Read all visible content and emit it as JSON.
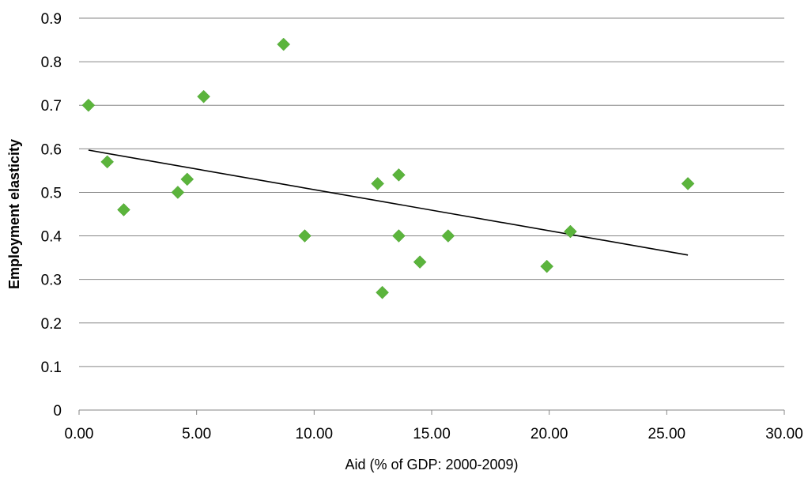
{
  "chart_data": {
    "type": "scatter",
    "title": "",
    "xlabel": "Aid (% of GDP: 2000-2009)",
    "ylabel": "Employment elasticity",
    "xlim": [
      0,
      30
    ],
    "ylim": [
      0,
      0.9
    ],
    "x_ticks": [
      0,
      5,
      10,
      15,
      20,
      25,
      30
    ],
    "x_tick_labels": [
      "0.00",
      "5.00",
      "10.00",
      "15.00",
      "20.00",
      "25.00",
      "30.00"
    ],
    "y_ticks": [
      0,
      0.1,
      0.2,
      0.3,
      0.4,
      0.5,
      0.6,
      0.7,
      0.8,
      0.9
    ],
    "y_tick_labels": [
      "0",
      "0.1",
      "0.2",
      "0.3",
      "0.4",
      "0.5",
      "0.6",
      "0.7",
      "0.8",
      "0.9"
    ],
    "grid": "horizontal",
    "marker": "diamond",
    "marker_color": "#5BB43C",
    "trendline_color": "#000000",
    "points": [
      {
        "x": 0.4,
        "y": 0.7
      },
      {
        "x": 1.2,
        "y": 0.57
      },
      {
        "x": 1.9,
        "y": 0.46
      },
      {
        "x": 4.2,
        "y": 0.5
      },
      {
        "x": 4.6,
        "y": 0.53
      },
      {
        "x": 5.3,
        "y": 0.72
      },
      {
        "x": 8.7,
        "y": 0.84
      },
      {
        "x": 9.6,
        "y": 0.4
      },
      {
        "x": 12.7,
        "y": 0.52
      },
      {
        "x": 12.9,
        "y": 0.27
      },
      {
        "x": 13.6,
        "y": 0.54
      },
      {
        "x": 13.6,
        "y": 0.4
      },
      {
        "x": 14.5,
        "y": 0.34
      },
      {
        "x": 15.7,
        "y": 0.4
      },
      {
        "x": 19.9,
        "y": 0.33
      },
      {
        "x": 20.9,
        "y": 0.41
      },
      {
        "x": 25.9,
        "y": 0.52
      }
    ],
    "trendline": {
      "x": [
        0.4,
        25.9
      ],
      "y": [
        0.597,
        0.356
      ]
    }
  }
}
